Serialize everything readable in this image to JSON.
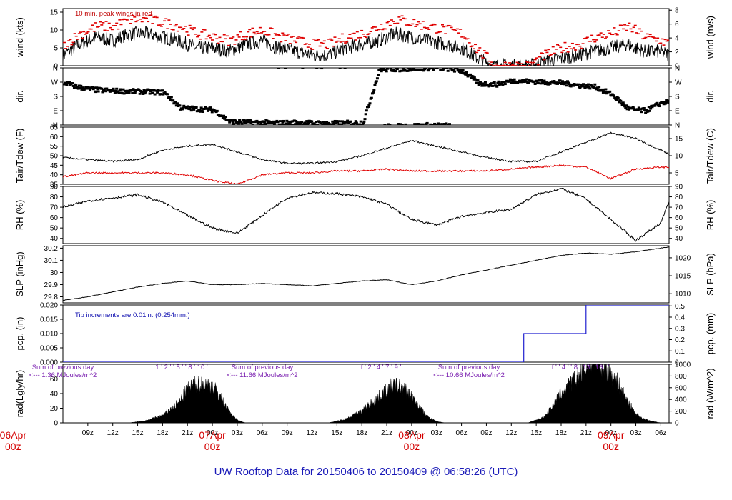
{
  "title": "UW Rooftop Data for 20150406  to  20150409 @ 06:58:26  (UTC)",
  "chart_data": {
    "type": "line",
    "title": "UW Rooftop Data for 20150406  to  20150409 @ 06:58:26  (UTC)",
    "x_axis": {
      "hour_ticks": [
        "09z",
        "12z",
        "15z",
        "18z",
        "21z",
        "00z",
        "03z",
        "06z",
        "09z",
        "12z",
        "15z",
        "18z",
        "21z",
        "00z",
        "03z",
        "06z",
        "09z",
        "12z",
        "15z",
        "18z",
        "21z",
        "00z",
        "03z",
        "06z"
      ],
      "date_labels": [
        {
          "day": "06Apr",
          "hour": "00z"
        },
        {
          "day": "07Apr",
          "hour": "00z"
        },
        {
          "day": "08Apr",
          "hour": "00z"
        },
        {
          "day": "09Apr",
          "hour": "00z"
        }
      ],
      "range_hours": [
        6,
        79
      ]
    },
    "panels": [
      {
        "name": "wind",
        "ylabel_left": "wind (kts)",
        "ylabel_right": "wind (m/s)",
        "ylim": [
          0,
          16
        ],
        "yticks_left": [
          0,
          5,
          10,
          15
        ],
        "yticks_right": [
          0,
          2,
          4,
          6,
          8
        ],
        "right_factor": 1.944,
        "annotation": "10 min. peak winds in red",
        "series": [
          {
            "name": "wind speed (kts)",
            "color": "#000000",
            "x": [
              6,
              8,
              10,
              12,
              14,
              16,
              18,
              20,
              22,
              24,
              26,
              28,
              30,
              32,
              34,
              36,
              38,
              40,
              42,
              44,
              46,
              48,
              50,
              52,
              54,
              56,
              58,
              60,
              62,
              64,
              66,
              68,
              70,
              72,
              74,
              76,
              78,
              79
            ],
            "y": [
              3,
              6,
              8,
              7,
              9,
              9,
              8,
              7,
              5,
              5,
              4,
              6,
              7,
              5,
              4,
              3,
              3,
              5,
              6,
              7,
              9,
              8,
              7,
              6,
              5,
              2,
              0,
              0,
              0,
              1,
              2,
              3,
              4,
              5,
              6,
              4,
              4,
              3
            ]
          },
          {
            "name": "10 min peak (kts)",
            "color": "#e00000",
            "x": [
              6,
              8,
              10,
              12,
              14,
              16,
              18,
              20,
              22,
              24,
              26,
              28,
              30,
              32,
              34,
              36,
              38,
              40,
              42,
              44,
              46,
              48,
              50,
              52,
              54,
              56,
              58,
              60,
              62,
              64,
              66,
              68,
              70,
              72,
              74,
              76,
              78,
              79
            ],
            "y": [
              6,
              9,
              11,
              11,
              13,
              13,
              12,
              11,
              9,
              8,
              7,
              9,
              10,
              8,
              7,
              6,
              6,
              8,
              9,
              11,
              13,
              12,
              11,
              10,
              9,
              4,
              0,
              0,
              0,
              3,
              5,
              6,
              8,
              9,
              11,
              8,
              7,
              6
            ]
          }
        ]
      },
      {
        "name": "dir",
        "ylabel_left": "dir.",
        "ylabel_right": "dir.",
        "ylim": [
          0,
          360
        ],
        "yticks_left": [
          "N",
          "E",
          "S",
          "W",
          "N"
        ],
        "yticks_right": [
          "N",
          "E",
          "S",
          "W",
          "N"
        ],
        "series": [
          {
            "name": "wind direction (deg)",
            "color": "#000000",
            "x": [
              6,
              8,
              10,
              12,
              14,
              16,
              18,
              20,
              22,
              24,
              26,
              28,
              30,
              32,
              34,
              36,
              38,
              40,
              42,
              44,
              46,
              48,
              50,
              52,
              54,
              56,
              58,
              60,
              62,
              64,
              66,
              68,
              70,
              72,
              74,
              76,
              78,
              79
            ],
            "y": [
              265,
              235,
              220,
              215,
              212,
              210,
              205,
              110,
              100,
              95,
              20,
              18,
              15,
              12,
              15,
              12,
              10,
              12,
              15,
              350,
              352,
              355,
              358,
              356,
              340,
              260,
              255,
              280,
              275,
              270,
              265,
              250,
              240,
              190,
              100,
              90,
              140,
              150
            ]
          }
        ]
      },
      {
        "name": "temperature",
        "ylabel_left": "Tair/Tdew (F)",
        "ylabel_right": "Tair/Tdew (C)",
        "ylim": [
          35,
          65
        ],
        "yticks_left": [
          35,
          40,
          45,
          50,
          55,
          60,
          65
        ],
        "yticks_right": [
          5,
          10,
          15
        ],
        "series": [
          {
            "name": "Tair (F)",
            "color": "#000000",
            "x": [
              6,
              9,
              12,
              15,
              18,
              21,
              24,
              27,
              30,
              33,
              36,
              39,
              42,
              45,
              48,
              51,
              54,
              57,
              60,
              63,
              66,
              69,
              72,
              75,
              78,
              79
            ],
            "y": [
              49,
              48,
              47,
              48,
              53,
              55,
              56,
              52,
              48,
              46,
              46,
              47,
              50,
              54,
              58,
              55,
              52,
              49,
              47,
              47,
              52,
              57,
              62,
              59,
              53,
              51
            ]
          },
          {
            "name": "Tdew (F)",
            "color": "#e00000",
            "x": [
              6,
              9,
              12,
              15,
              18,
              21,
              24,
              27,
              30,
              33,
              36,
              39,
              42,
              45,
              48,
              51,
              54,
              57,
              60,
              63,
              66,
              69,
              72,
              75,
              78,
              79
            ],
            "y": [
              39,
              41,
              41,
              41,
              41,
              40,
              37,
              35,
              40,
              41,
              41,
              42,
              42,
              43,
              42,
              42,
              42,
              42,
              43,
              44,
              45,
              44,
              38,
              43,
              44,
              44
            ]
          }
        ]
      },
      {
        "name": "rh",
        "ylabel_left": "RH (%)",
        "ylabel_right": "RH (%)",
        "ylim": [
          35,
          90
        ],
        "yticks_left": [
          40,
          50,
          60,
          70,
          80,
          90
        ],
        "yticks_right": [
          40,
          50,
          60,
          70,
          80,
          90
        ],
        "series": [
          {
            "name": "RH (%)",
            "color": "#000000",
            "x": [
              6,
              9,
              12,
              15,
              18,
              21,
              24,
              27,
              30,
              33,
              36,
              39,
              42,
              45,
              48,
              51,
              54,
              57,
              60,
              63,
              66,
              69,
              72,
              75,
              78,
              79
            ],
            "y": [
              70,
              76,
              79,
              82,
              75,
              62,
              50,
              45,
              62,
              79,
              84,
              83,
              80,
              73,
              58,
              53,
              61,
              65,
              68,
              82,
              88,
              78,
              58,
              38,
              55,
              75
            ]
          }
        ]
      },
      {
        "name": "slp",
        "ylabel_left": "SLP (inHg)",
        "ylabel_right": "SLP (hPa)",
        "ylim": [
          29.75,
          30.22
        ],
        "yticks_left": [
          29.8,
          29.9,
          30.0,
          30.1,
          30.2
        ],
        "yticks_right": [
          1010,
          1015,
          1020
        ],
        "series": [
          {
            "name": "SLP (inHg)",
            "color": "#000000",
            "x": [
              6,
              9,
              12,
              15,
              18,
              21,
              24,
              27,
              30,
              33,
              36,
              39,
              42,
              45,
              48,
              51,
              54,
              57,
              60,
              63,
              66,
              69,
              72,
              75,
              78,
              79
            ],
            "y": [
              29.77,
              29.8,
              29.84,
              29.88,
              29.91,
              29.93,
              29.9,
              29.9,
              29.91,
              29.9,
              29.89,
              29.91,
              29.93,
              29.94,
              29.9,
              29.93,
              29.98,
              30.02,
              30.06,
              30.1,
              30.14,
              30.16,
              30.15,
              30.17,
              30.2,
              30.21
            ]
          }
        ]
      },
      {
        "name": "pcp",
        "ylabel_left": "pcp. (in)",
        "ylabel_right": "pcp. (mm)",
        "ylim": [
          0,
          0.02
        ],
        "yticks_left": [
          "0.000",
          "0.005",
          "0.010",
          "0.015",
          "0.020"
        ],
        "yticks_right": [
          0,
          0.1,
          0.2,
          0.3,
          0.4,
          0.5
        ],
        "annotation": "Tip increments are 0.01in. (0.254mm.)",
        "series": [
          {
            "name": "precip (in)",
            "color": "#2020d0",
            "step": true,
            "x": [
              6,
              61.5,
              61.5,
              69,
              69,
              79
            ],
            "y": [
              0,
              0,
              0.01,
              0.01,
              0.02,
              0.02
            ]
          }
        ]
      },
      {
        "name": "rad",
        "ylabel_left": "rad(Lgly/hr)",
        "ylabel_right": "rad (W/m^2)",
        "ylim": [
          0,
          80
        ],
        "yticks_left": [
          0,
          20,
          40,
          60
        ],
        "yticks_right": [
          0,
          200,
          400,
          600,
          800,
          1000
        ],
        "daily_sums": [
          {
            "label": "Sum of previous day",
            "value": "<---  1.36  MJoules/m^2"
          },
          {
            "label": "Sum of previous day",
            "value": "<---  11.66  MJoules/m^2"
          },
          {
            "label": "Sum of previous day",
            "value": "<---  10.66  MJoules/m^2"
          }
        ],
        "marker_rows": [
          "1  ' 2  ' ' 5  ' ' 8  '  10  '",
          "f  ' 2  ' 4  ' 7  ' 9  '",
          "f  ' ' 4  ' ' 8  ' 13  ' 16  '  '"
        ],
        "series": [
          {
            "name": "radiation (Lgly/hr)",
            "color": "#000000",
            "fill": true,
            "x": [
              6,
              10,
              13,
              14,
              16,
              18,
              20,
              21,
              22,
              23,
              24,
              25,
              26,
              27,
              28,
              34,
              37,
              38,
              40,
              42,
              44,
              45,
              46,
              47,
              48,
              49,
              50,
              51,
              52,
              58,
              61,
              62,
              64,
              66,
              68,
              69,
              70,
              71,
              72,
              73,
              74,
              75,
              76,
              77,
              78,
              79
            ],
            "y": [
              0,
              0,
              0,
              0,
              3,
              10,
              28,
              45,
              52,
              53,
              50,
              35,
              15,
              4,
              0,
              0,
              0,
              0,
              5,
              16,
              35,
              45,
              52,
              47,
              36,
              20,
              8,
              2,
              0,
              0,
              0,
              0,
              8,
              40,
              62,
              75,
              92,
              75,
              70,
              50,
              30,
              12,
              5,
              2,
              0,
              0
            ]
          }
        ]
      }
    ]
  }
}
